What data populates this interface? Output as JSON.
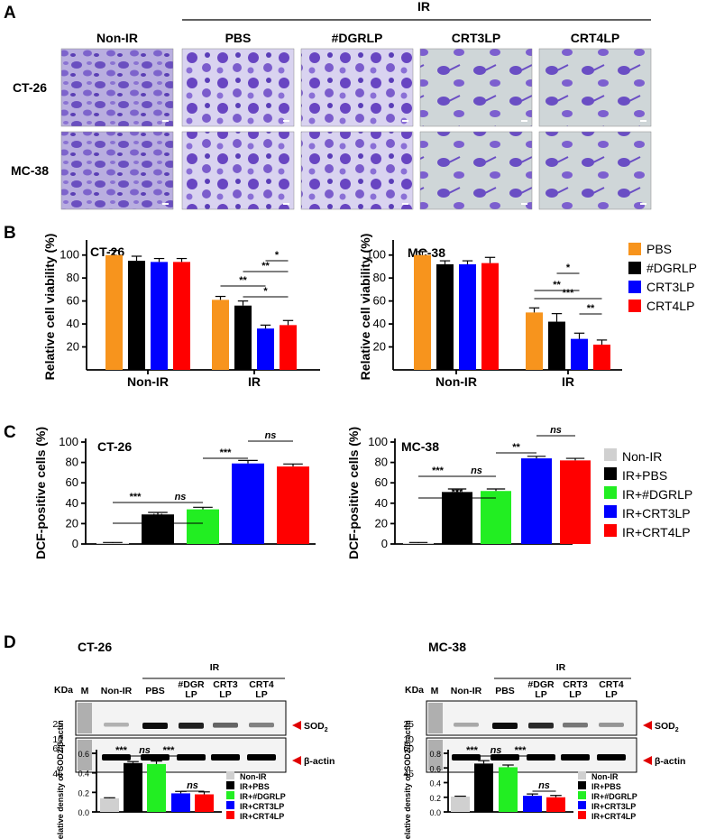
{
  "colors": {
    "PBS": "#f7941d",
    "DGRLP": "#000000",
    "CRT3LP": "#0000ff",
    "CRT4LP": "#ff0000",
    "NonIR": "#d0d0d0",
    "IRDGRLP": "#22ee22"
  },
  "panelA": {
    "letter": "A",
    "ir_label": "IR",
    "col_headers": [
      "Non-IR",
      "PBS",
      "#DGRLP",
      "CRT3LP",
      "CRT4LP"
    ],
    "row_headers": [
      "CT-26",
      "MC-38"
    ]
  },
  "panelB": {
    "letter": "B"
  },
  "panelC": {
    "letter": "C"
  },
  "panelD": {
    "letter": "D",
    "blots": [
      {
        "title": "CT-26",
        "ir_label": "IR",
        "kda_label": "KDa",
        "lane_labels": [
          "M",
          "Non-IR",
          "PBS",
          "#DGR\nLP",
          "CRT3\nLP",
          "CRT4\nLP"
        ],
        "markers_top": [
          "25",
          "10"
        ],
        "markers_bottom": [
          "60",
          "45"
        ],
        "band_sod": "SOD",
        "band_sod_sub": "2",
        "band_actin": "β-actin"
      },
      {
        "title": "MC-38",
        "ir_label": "IR",
        "kda_label": "KDa",
        "lane_labels": [
          "M",
          "Non-IR",
          "PBS",
          "#DGR\nLP",
          "CRT3\nLP",
          "CRT4\nLP"
        ],
        "markers_top": [
          "25",
          "10"
        ],
        "markers_bottom": [
          "60",
          "45"
        ],
        "band_sod": "SOD",
        "band_sod_sub": "2",
        "band_actin": "β-actin"
      }
    ]
  },
  "chart_data": [
    {
      "id": "B1",
      "type": "bar",
      "title": "CT-26",
      "ylabel": "Relative cell viability (%)",
      "ylim": [
        0,
        110
      ],
      "yticks": [
        20,
        40,
        60,
        80,
        100
      ],
      "categories": [
        "Non-IR",
        "IR"
      ],
      "series": [
        {
          "name": "PBS",
          "values": [
            100,
            61
          ],
          "err": [
            4,
            3
          ]
        },
        {
          "name": "#DGRLP",
          "values": [
            95,
            56
          ],
          "err": [
            4,
            4
          ]
        },
        {
          "name": "CRT3LP",
          "values": [
            94,
            36
          ],
          "err": [
            3,
            3
          ]
        },
        {
          "name": "CRT4LP",
          "values": [
            94,
            39
          ],
          "err": [
            3,
            4
          ]
        }
      ],
      "significance": [
        {
          "from": [
            1,
            2
          ],
          "to": [
            1,
            3
          ],
          "label": "*"
        },
        {
          "from": [
            1,
            1
          ],
          "to": [
            1,
            3
          ],
          "label": "**"
        },
        {
          "from": [
            1,
            0
          ],
          "to": [
            1,
            2
          ],
          "label": "**"
        },
        {
          "from": [
            1,
            1
          ],
          "to": [
            1,
            3
          ],
          "label": "*"
        }
      ],
      "legend": []
    },
    {
      "id": "B2",
      "type": "bar",
      "title": "MC-38",
      "ylabel": "Relative cell viability (%)",
      "ylim": [
        0,
        110
      ],
      "yticks": [
        20,
        40,
        60,
        80,
        100
      ],
      "categories": [
        "Non-IR",
        "IR"
      ],
      "series": [
        {
          "name": "PBS",
          "values": [
            100,
            50
          ],
          "err": [
            3,
            4
          ]
        },
        {
          "name": "#DGRLP",
          "values": [
            92,
            42
          ],
          "err": [
            3,
            7
          ]
        },
        {
          "name": "CRT3LP",
          "values": [
            92,
            27
          ],
          "err": [
            3,
            5
          ]
        },
        {
          "name": "CRT4LP",
          "values": [
            93,
            22
          ],
          "err": [
            5,
            4
          ]
        }
      ],
      "significance": [
        {
          "from": [
            1,
            1
          ],
          "to": [
            1,
            2
          ],
          "label": "*"
        },
        {
          "from": [
            1,
            0
          ],
          "to": [
            1,
            2
          ],
          "label": "**"
        },
        {
          "from": [
            1,
            0
          ],
          "to": [
            1,
            3
          ],
          "label": "***"
        },
        {
          "from": [
            1,
            2
          ],
          "to": [
            1,
            3
          ],
          "label": "**"
        }
      ],
      "legend": [
        "PBS",
        "#DGRLP",
        "CRT3LP",
        "CRT4LP"
      ]
    },
    {
      "id": "C1",
      "type": "bar",
      "title": "CT-26",
      "ylabel": "DCF-positive cells (%)",
      "ylim": [
        0,
        100
      ],
      "yticks": [
        0,
        20,
        40,
        60,
        80,
        100
      ],
      "categories": [
        "Non-IR",
        "IR+PBS",
        "IR+#DGRLP",
        "IR+CRT3LP",
        "IR+CRT4LP"
      ],
      "values": [
        1,
        29,
        34,
        79,
        76
      ],
      "err": [
        0.5,
        2,
        2,
        3,
        2.5
      ],
      "significance": [
        {
          "from": 1,
          "to": 2,
          "label": "***",
          "italic": false
        },
        {
          "from": 2,
          "to": 3,
          "label": "ns",
          "italic": true
        },
        {
          "from": 1,
          "to": 3,
          "label": "***",
          "italic": false
        },
        {
          "from": 3,
          "to": 4,
          "label": "***",
          "italic": false
        },
        {
          "from": 4,
          "to": 5,
          "label": "ns",
          "italic": true
        }
      ],
      "legend": []
    },
    {
      "id": "C2",
      "type": "bar",
      "title": "MC-38",
      "ylabel": "DCF-positive cells (%)",
      "ylim": [
        0,
        100
      ],
      "yticks": [
        0,
        20,
        40,
        60,
        80,
        100
      ],
      "categories": [
        "Non-IR",
        "IR+PBS",
        "IR+#DGRLP",
        "IR+CRT3LP",
        "IR+CRT4LP"
      ],
      "values": [
        1,
        51,
        52,
        84,
        82
      ],
      "err": [
        0.5,
        3,
        2,
        2,
        2
      ],
      "significance": [
        {
          "from": 1,
          "to": 2,
          "label": "***",
          "italic": false
        },
        {
          "from": 2,
          "to": 3,
          "label": "ns",
          "italic": true
        },
        {
          "from": 1,
          "to": 3,
          "label": "***",
          "italic": false
        },
        {
          "from": 3,
          "to": 4,
          "label": "**",
          "italic": false
        },
        {
          "from": 4,
          "to": 5,
          "label": "ns",
          "italic": true
        }
      ],
      "legend": [
        "Non-IR",
        "IR+PBS",
        "IR+#DGRLP",
        "IR+CRT3LP",
        "IR+CRT4LP"
      ]
    },
    {
      "id": "D1",
      "type": "bar",
      "title": "",
      "ylabel": "Relative density of SOD2/β-actin",
      "ylim": [
        0,
        0.6
      ],
      "yticks": [
        0.0,
        0.2,
        0.4,
        0.6
      ],
      "categories": [
        "Non-IR",
        "IR+PBS",
        "IR+#DGRLP",
        "IR+CRT3LP",
        "IR+CRT4LP"
      ],
      "values": [
        0.14,
        0.5,
        0.49,
        0.19,
        0.18
      ],
      "err": [
        0.005,
        0.015,
        0.03,
        0.02,
        0.025
      ],
      "significance": [
        {
          "from": 1,
          "to": 2,
          "label": "***",
          "italic": false
        },
        {
          "from": 2,
          "to": 3,
          "label": "ns",
          "italic": true
        },
        {
          "from": 3,
          "to": 4,
          "label": "***",
          "italic": false
        },
        {
          "from": 4,
          "to": 5,
          "label": "ns",
          "italic": true
        }
      ],
      "legend": [
        "Non-IR",
        "IR+PBS",
        "IR+#DGRLP",
        "IR+CRT3LP",
        "IR+CRT4LP"
      ]
    },
    {
      "id": "D2",
      "type": "bar",
      "title": "",
      "ylabel": "Relative density of SOD2/β-actin",
      "ylim": [
        0,
        0.8
      ],
      "yticks": [
        0.0,
        0.2,
        0.4,
        0.6,
        0.8
      ],
      "categories": [
        "Non-IR",
        "IR+PBS",
        "IR+#DGRLP",
        "IR+CRT3LP",
        "IR+CRT4LP"
      ],
      "values": [
        0.21,
        0.66,
        0.61,
        0.22,
        0.2
      ],
      "err": [
        0.005,
        0.04,
        0.03,
        0.025,
        0.025
      ],
      "significance": [
        {
          "from": 1,
          "to": 2,
          "label": "***",
          "italic": false
        },
        {
          "from": 2,
          "to": 3,
          "label": "ns",
          "italic": true
        },
        {
          "from": 3,
          "to": 4,
          "label": "***",
          "italic": false
        },
        {
          "from": 4,
          "to": 5,
          "label": "ns",
          "italic": true
        }
      ],
      "legend": [
        "Non-IR",
        "IR+PBS",
        "IR+#DGRLP",
        "IR+CRT3LP",
        "IR+CRT4LP"
      ]
    }
  ]
}
